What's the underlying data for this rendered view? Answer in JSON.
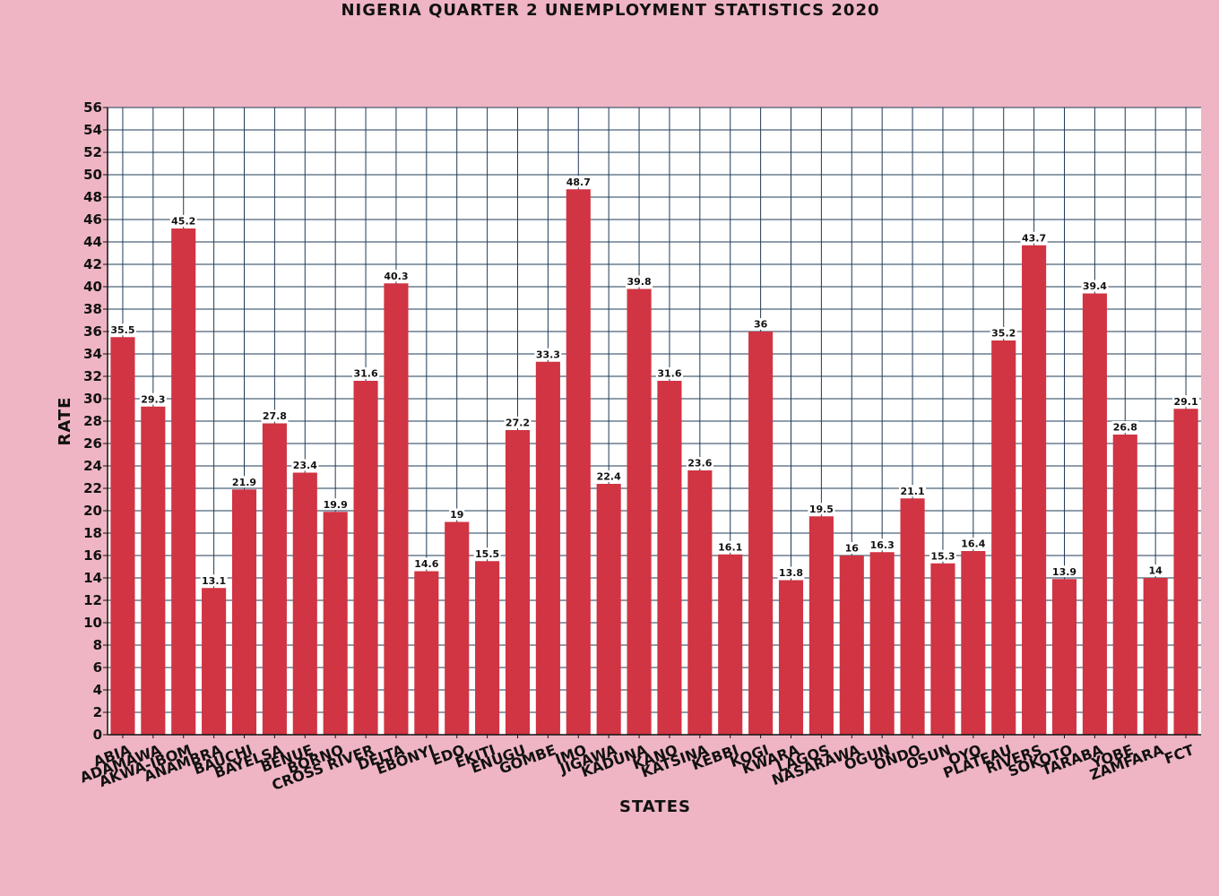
{
  "chart_data": {
    "type": "bar",
    "title": "NIGERIA QUARTER 2 UNEMPLOYMENT STATISTICS 2020",
    "xlabel": "STATES",
    "ylabel": "RATE",
    "ylim": [
      0,
      56
    ],
    "yticks": [
      0,
      2,
      4,
      6,
      8,
      10,
      12,
      14,
      16,
      18,
      20,
      22,
      24,
      26,
      28,
      30,
      32,
      34,
      36,
      38,
      40,
      42,
      44,
      46,
      48,
      50,
      52,
      54,
      56
    ],
    "grid": true,
    "categories": [
      "ABIA",
      "ADAMAWA",
      "AKWA-IBOM",
      "ANAMBRA",
      "BAUCHI",
      "BAYELSA",
      "BENUE",
      "BORNO",
      "CROSS RIVER",
      "DELTA",
      "EBONYI",
      "EDO",
      "EKITI",
      "ENUGU",
      "GOMBE",
      "IMO",
      "JIGAWA",
      "KADUNA",
      "KANO",
      "KATSINA",
      "KEBBI",
      "KOGI",
      "KWARA",
      "LAGOS",
      "NASARAWA",
      "OGUN",
      "ONDO",
      "OSUN",
      "OYO",
      "PLATEAU",
      "RIVERS",
      "SOKOTO",
      "TARABA",
      "YOBE",
      "ZAMFARA",
      "FCT"
    ],
    "values": [
      35.5,
      29.3,
      45.2,
      13.1,
      21.9,
      27.8,
      23.4,
      19.9,
      31.6,
      40.3,
      14.6,
      19,
      15.5,
      27.2,
      33.3,
      48.7,
      22.4,
      39.8,
      31.6,
      23.6,
      16.1,
      36,
      13.8,
      19.5,
      16,
      16.3,
      21.1,
      15.3,
      16.4,
      35.2,
      43.7,
      13.9,
      39.4,
      26.8,
      14,
      29.1
    ],
    "colors": {
      "background": "#efb5c4",
      "plot": "#ffffff",
      "bar": "#d13442",
      "grid": "#1f3b57"
    }
  }
}
